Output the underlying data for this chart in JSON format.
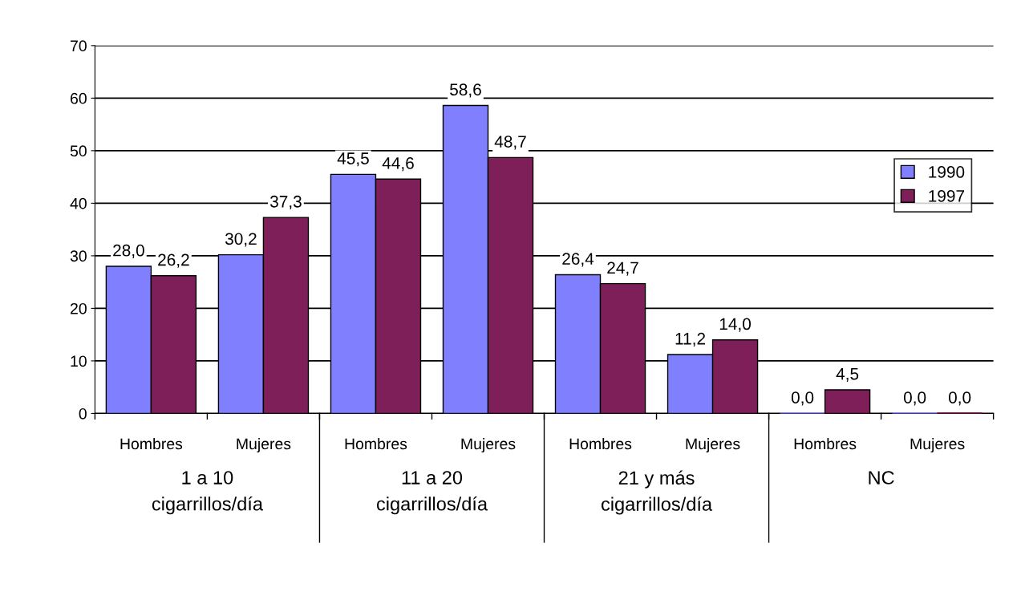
{
  "chart_data": {
    "type": "bar",
    "categories": [
      "Hombres",
      "Mujeres",
      "Hombres",
      "Mujeres",
      "Hombres",
      "Mujeres",
      "Hombres",
      "Mujeres"
    ],
    "annotations": [
      "1 a 10\ncigarrillos/día",
      "11 a 20\ncigarrillos/día",
      "21 y más\ncigarrillos/día",
      "NC"
    ],
    "series": [
      {
        "name": "1990",
        "color": "#8080ff",
        "values": [
          28.0,
          30.2,
          45.5,
          58.6,
          26.4,
          11.2,
          0.0,
          0.0
        ],
        "value_labels": [
          "28,0",
          "30,2",
          "45,5",
          "58,6",
          "26,4",
          "11,2",
          "0,0",
          "0,0"
        ]
      },
      {
        "name": "1997",
        "color": "#7f1f5a",
        "values": [
          26.2,
          37.3,
          44.6,
          48.7,
          24.7,
          14.0,
          4.5,
          0.0
        ],
        "value_labels": [
          "26,2",
          "37,3",
          "44,6",
          "48,7",
          "24,7",
          "14,0",
          "4,5",
          "0,0"
        ]
      }
    ],
    "ylim": [
      0,
      70
    ],
    "yticks": [
      0,
      10,
      20,
      30,
      40,
      50,
      60,
      70
    ],
    "grid": "y",
    "legend": "right"
  }
}
